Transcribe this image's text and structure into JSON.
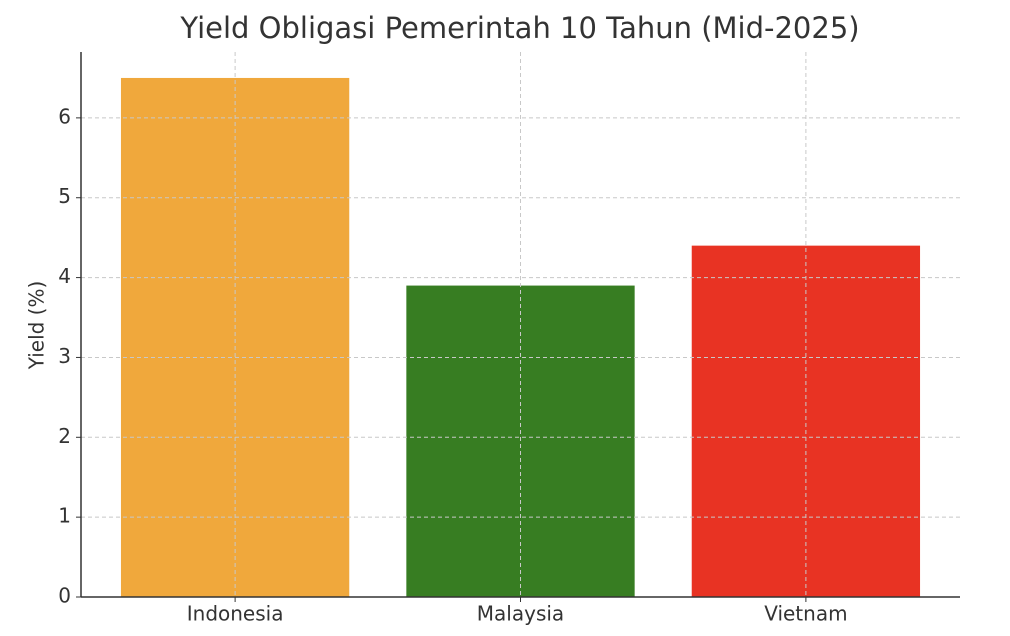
{
  "chart_data": {
    "type": "bar",
    "title": "Yield Obligasi Pemerintah 10 Tahun (Mid-2025)",
    "y_label": "Yield (%)",
    "categories": [
      "Indonesia",
      "Malaysia",
      "Vietnam"
    ],
    "values": [
      6.5,
      3.9,
      4.4
    ],
    "colors": [
      "#f0a83c",
      "#377d22",
      "#e83323"
    ],
    "ylim": [
      0,
      6.825
    ],
    "yticks": [
      0,
      1,
      2,
      3,
      4,
      5,
      6
    ],
    "grid": true
  }
}
